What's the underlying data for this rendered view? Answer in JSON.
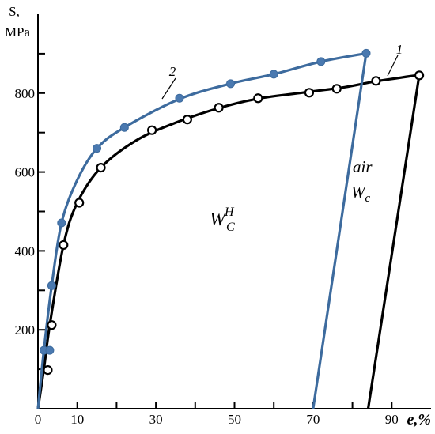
{
  "chart_data": {
    "type": "line",
    "title": "",
    "xlabel": "e,%",
    "ylabel": "S, MPa",
    "ylabel_lines": [
      "S,",
      "MPa"
    ],
    "xlim": [
      0,
      100
    ],
    "ylim": [
      0,
      1000
    ],
    "x_ticks": [
      0,
      10,
      30,
      50,
      70,
      90
    ],
    "x_tick_labels": [
      "0",
      "10",
      "30",
      "50",
      "70",
      "90"
    ],
    "x_minor_ticks": [
      20,
      40,
      60,
      80
    ],
    "y_ticks": [
      200,
      400,
      600,
      800
    ],
    "y_tick_labels": [
      "200",
      "400",
      "600",
      "800"
    ],
    "y_minor_ticks": [
      100,
      300,
      500,
      700,
      900
    ],
    "grid": false,
    "legend": "none",
    "series": [
      {
        "label": "1",
        "color": "#000000",
        "marker": "open-circle",
        "points": [
          {
            "x": 2.5,
            "y": 98
          },
          {
            "x": 3.5,
            "y": 212
          },
          {
            "x": 6.5,
            "y": 415
          },
          {
            "x": 10.5,
            "y": 522
          },
          {
            "x": 16,
            "y": 611
          },
          {
            "x": 29,
            "y": 706
          },
          {
            "x": 38,
            "y": 733
          },
          {
            "x": 46,
            "y": 763
          },
          {
            "x": 56,
            "y": 787
          },
          {
            "x": 69,
            "y": 801
          },
          {
            "x": 76,
            "y": 811
          },
          {
            "x": 86,
            "y": 831
          },
          {
            "x": 97,
            "y": 845
          }
        ],
        "curve": [
          {
            "x": 0,
            "y": 0
          },
          {
            "x": 1.5,
            "y": 100
          },
          {
            "x": 3,
            "y": 212
          },
          {
            "x": 6.5,
            "y": 415
          },
          {
            "x": 10,
            "y": 522
          },
          {
            "x": 16,
            "y": 611
          },
          {
            "x": 25,
            "y": 680
          },
          {
            "x": 35,
            "y": 725
          },
          {
            "x": 46,
            "y": 762
          },
          {
            "x": 56,
            "y": 786
          },
          {
            "x": 68,
            "y": 802
          },
          {
            "x": 78,
            "y": 815
          },
          {
            "x": 86,
            "y": 830
          },
          {
            "x": 97,
            "y": 846
          }
        ],
        "unloading": [
          {
            "x": 97,
            "y": 846
          },
          {
            "x": 84,
            "y": 0
          }
        ]
      },
      {
        "label": "2",
        "color": "#3d6b9e",
        "marker": "filled-circle",
        "points": [
          {
            "x": 1.5,
            "y": 148
          },
          {
            "x": 3,
            "y": 148
          },
          {
            "x": 3.5,
            "y": 312
          },
          {
            "x": 6,
            "y": 471
          },
          {
            "x": 15,
            "y": 660
          },
          {
            "x": 22,
            "y": 713
          },
          {
            "x": 36,
            "y": 787
          },
          {
            "x": 49,
            "y": 824
          },
          {
            "x": 60,
            "y": 848
          },
          {
            "x": 72,
            "y": 880
          },
          {
            "x": 83.5,
            "y": 901
          }
        ],
        "curve": [
          {
            "x": 0,
            "y": 0
          },
          {
            "x": 1.5,
            "y": 148
          },
          {
            "x": 3.5,
            "y": 312
          },
          {
            "x": 6,
            "y": 471
          },
          {
            "x": 10,
            "y": 580
          },
          {
            "x": 15,
            "y": 660
          },
          {
            "x": 22,
            "y": 713
          },
          {
            "x": 36,
            "y": 785
          },
          {
            "x": 49,
            "y": 824
          },
          {
            "x": 60,
            "y": 848
          },
          {
            "x": 72,
            "y": 880
          },
          {
            "x": 83.5,
            "y": 901
          }
        ],
        "unloading": [
          {
            "x": 83.5,
            "y": 901
          },
          {
            "x": 70,
            "y": 0
          }
        ]
      }
    ],
    "annotations": {
      "curve1_label": "1",
      "curve2_label": "2",
      "air_label": "air",
      "wc_main": "W",
      "wc_sub": "c",
      "wch_main": "W",
      "wch_sub": "C",
      "wch_sup": "H"
    }
  }
}
